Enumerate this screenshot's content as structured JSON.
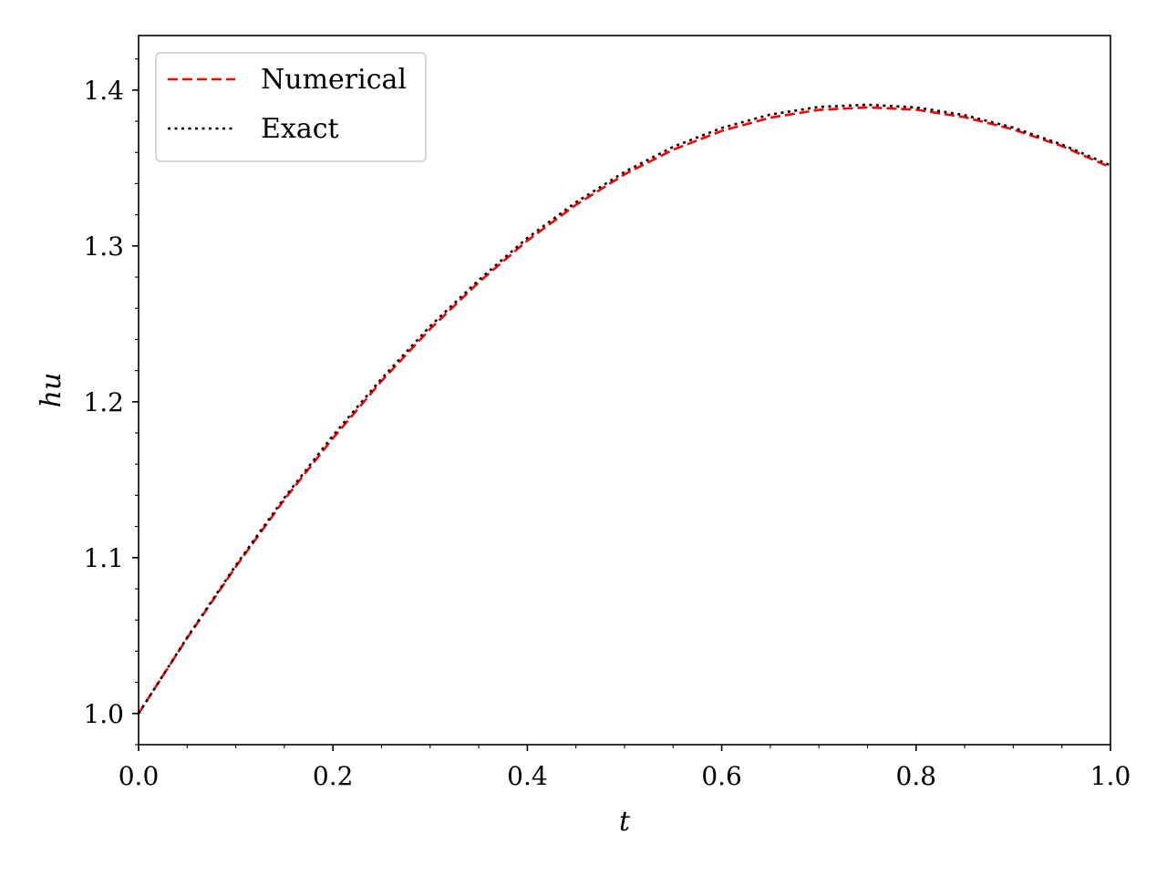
{
  "chart_data": {
    "type": "line",
    "title": "",
    "xlabel": "t",
    "ylabel": "hu",
    "xlim": [
      0.0,
      1.0
    ],
    "ylim": [
      0.98,
      1.435
    ],
    "xticks": [
      0.0,
      0.2,
      0.4,
      0.6,
      0.8,
      1.0
    ],
    "xtick_labels": [
      "0.0",
      "0.2",
      "0.4",
      "0.6",
      "0.8",
      "1.0"
    ],
    "yticks": [
      1.0,
      1.1,
      1.2,
      1.3,
      1.4
    ],
    "ytick_labels": [
      "1.0",
      "1.1",
      "1.2",
      "1.3",
      "1.4"
    ],
    "grid": false,
    "legend_position": "upper-left",
    "x": [
      0.0,
      0.05,
      0.1,
      0.15,
      0.2,
      0.25,
      0.3,
      0.35,
      0.4,
      0.45,
      0.5,
      0.55,
      0.6,
      0.65,
      0.7,
      0.75,
      0.8,
      0.85,
      0.9,
      0.95,
      1.0
    ],
    "series": [
      {
        "name": "Numerical",
        "color": "#ff0000",
        "dash": "dashed",
        "values": [
          1.0,
          1.0484,
          1.0941,
          1.1372,
          1.1766,
          1.2133,
          1.2467,
          1.2766,
          1.3034,
          1.3263,
          1.3459,
          1.3617,
          1.3738,
          1.3823,
          1.3873,
          1.3889,
          1.3874,
          1.3826,
          1.3748,
          1.3641,
          1.3505
        ]
      },
      {
        "name": "Exact",
        "color": "#000000",
        "dash": "dotted",
        "values": [
          1.0,
          1.0488,
          1.095,
          1.1384,
          1.1784,
          1.2148,
          1.2485,
          1.2781,
          1.3051,
          1.328,
          1.3475,
          1.3636,
          1.3757,
          1.3843,
          1.3892,
          1.3906,
          1.3889,
          1.3839,
          1.3759,
          1.3651,
          1.3517
        ]
      }
    ]
  }
}
